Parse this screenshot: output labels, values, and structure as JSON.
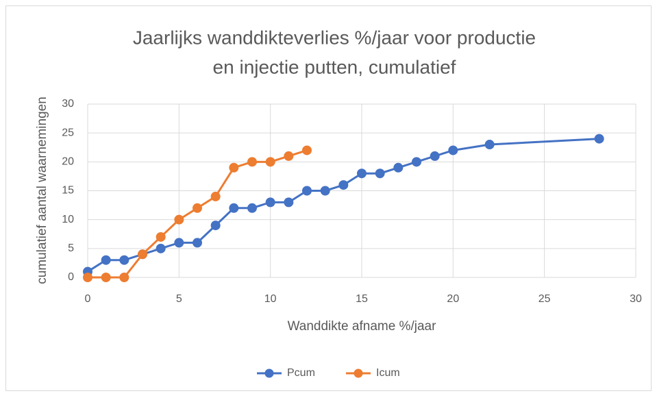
{
  "chart_data": {
    "type": "line",
    "title": [
      "Jaarlijks wanddikteverlies %/jaar voor productie",
      "en injectie putten, cumulatief"
    ],
    "xlabel": "Wanddikte afname %/jaar",
    "ylabel": "cumulatief aantal waarnemingen",
    "series": [
      {
        "name": "Pcum",
        "color": "#4472c4",
        "x": [
          0,
          1,
          2,
          3,
          4,
          5,
          6,
          7,
          8,
          9,
          10,
          11,
          12,
          13,
          14,
          15,
          16,
          17,
          18,
          19,
          20,
          22,
          28
        ],
        "values": [
          1,
          3,
          3,
          4,
          5,
          6,
          6,
          9,
          12,
          12,
          13,
          13,
          15,
          15,
          16,
          18,
          18,
          19,
          20,
          21,
          22,
          23,
          24
        ]
      },
      {
        "name": "Icum",
        "color": "#ed7d31",
        "x": [
          0,
          1,
          2,
          3,
          4,
          5,
          6,
          7,
          8,
          9,
          10,
          11,
          12
        ],
        "values": [
          0,
          0,
          0,
          4,
          7,
          10,
          12,
          14,
          19,
          20,
          20,
          21,
          22
        ]
      }
    ],
    "xlim": [
      0,
      30
    ],
    "xticks": [
      0,
      5,
      10,
      15,
      20,
      25,
      30
    ],
    "ylim": [
      0,
      30
    ],
    "yticks": [
      0,
      5,
      10,
      15,
      20,
      25,
      30
    ],
    "grid": true,
    "legend": "bottom"
  }
}
